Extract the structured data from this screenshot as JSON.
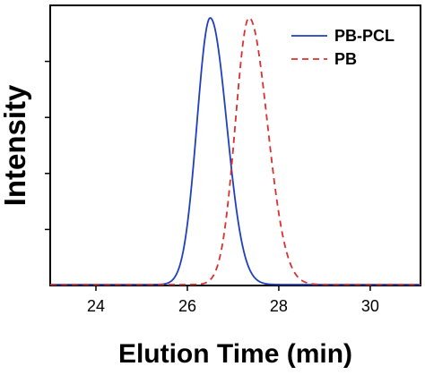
{
  "chart_data": {
    "type": "line",
    "title": "",
    "xlabel": "Elution Time (min)",
    "ylabel": "Intensity",
    "xlim": [
      23,
      31.1
    ],
    "ylim": [
      0,
      1
    ],
    "xticks": [
      24,
      26,
      28,
      30
    ],
    "xtick_labels": [
      "24",
      "26",
      "28",
      "30"
    ],
    "yticks": [
      0.2,
      0.4,
      0.6,
      0.8
    ],
    "ytick_labels": [],
    "grid": false,
    "legend_position": "top-right",
    "series": [
      {
        "name": "PB-PCL",
        "color": "#1f3fbf",
        "line_style": "solid",
        "peak_x": 26.5,
        "sigma_left": 0.29,
        "sigma_right": 0.36,
        "x": [
          23.0,
          24.0,
          25.0,
          25.3,
          25.5,
          25.7,
          25.9,
          26.1,
          26.3,
          26.4,
          26.5,
          26.6,
          26.8,
          27.0,
          27.2,
          27.4,
          27.6,
          27.8,
          28.0,
          28.5,
          31.1
        ],
        "y": [
          0.0,
          0.0,
          0.0,
          0.01,
          0.04,
          0.15,
          0.35,
          0.62,
          0.88,
          0.97,
          1.0,
          0.97,
          0.82,
          0.58,
          0.35,
          0.18,
          0.08,
          0.03,
          0.01,
          0.0,
          0.0
        ]
      },
      {
        "name": "PB",
        "color": "#d93030",
        "line_style": "dashed",
        "peak_x": 27.35,
        "sigma_left": 0.3,
        "sigma_right": 0.4,
        "x": [
          23.0,
          26.0,
          26.5,
          26.8,
          27.0,
          27.2,
          27.35,
          27.5,
          27.7,
          27.9,
          28.1,
          28.3,
          28.5,
          28.8,
          29.2,
          31.1
        ],
        "y": [
          0.0,
          0.0,
          0.02,
          0.18,
          0.5,
          0.88,
          1.0,
          0.93,
          0.72,
          0.45,
          0.24,
          0.11,
          0.04,
          0.01,
          0.0,
          0.0
        ]
      }
    ]
  }
}
